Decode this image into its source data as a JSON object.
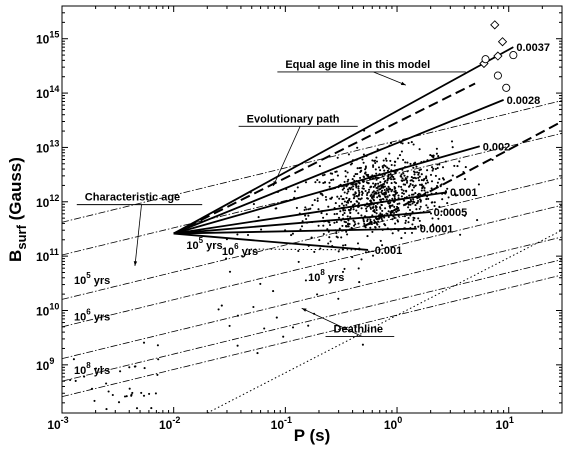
{
  "chart_data": {
    "type": "scatter",
    "x_scale": "log",
    "y_scale": "log",
    "xlim": [
      0.001,
      30
    ],
    "ylim": [
      130000000.0,
      4000000000000000.0
    ],
    "xlabel": "P (s)",
    "ylabel": "B_surf (Gauss)",
    "ylabel_main": "B",
    "ylabel_sub": "surf",
    "ylabel_unit": "(Gauss)",
    "x_ticks": [
      {
        "value": 0.001,
        "base": "10",
        "exp": "-3"
      },
      {
        "value": 0.01,
        "base": "10",
        "exp": "-2"
      },
      {
        "value": 0.1,
        "base": "10",
        "exp": "-1"
      },
      {
        "value": 1,
        "base": "10",
        "exp": "0"
      },
      {
        "value": 10,
        "base": "10",
        "exp": "1"
      }
    ],
    "y_ticks": [
      {
        "value": 1000000000.0,
        "base": "10",
        "exp": "9"
      },
      {
        "value": 10000000000.0,
        "base": "10",
        "exp": "10"
      },
      {
        "value": 100000000000.0,
        "base": "10",
        "exp": "11"
      },
      {
        "value": 1000000000000.0,
        "base": "10",
        "exp": "12"
      },
      {
        "value": 10000000000000.0,
        "base": "10",
        "exp": "13"
      },
      {
        "value": 100000000000000.0,
        "base": "10",
        "exp": "14"
      },
      {
        "value": 1000000000000000.0,
        "base": "10",
        "exp": "15"
      }
    ],
    "origin": {
      "x": 0.01,
      "y": 260000000000.0
    },
    "evolutionary_paths": [
      {
        "label": "0.0037",
        "end": [
          11,
          700000000000000.0
        ]
      },
      {
        "label": "0.0028",
        "end": [
          9,
          75000000000000.0
        ]
      },
      {
        "label": "0.002",
        "end": [
          5.5,
          10500000000000.0
        ]
      },
      {
        "label": "0.001",
        "end": [
          2.8,
          1500000000000.0
        ]
      },
      {
        "label": "0.0005",
        "end": [
          2.0,
          650000000000.0
        ]
      },
      {
        "label": "0.0001",
        "end": [
          1.5,
          320000000000.0
        ]
      },
      {
        "label": "-0.001",
        "end": [
          0.55,
          130000000000.0
        ]
      }
    ],
    "equal_age_line": {
      "points": [
        [
          0.01,
          260000000000.0
        ],
        [
          5,
          150000000000000.0
        ]
      ]
    },
    "characteristic_age_lines": [
      {
        "label": "10",
        "exp": "5",
        "unit": "yrs",
        "y_at_0.001": 16000000000.0
      },
      {
        "label": "10",
        "exp": "6",
        "unit": "yrs",
        "y_at_0.001": 5000000000.0
      },
      {
        "label": "10",
        "exp": "8",
        "unit": "yrs",
        "y_at_0.001": 500000000.0
      }
    ],
    "deathline": {
      "points": [
        [
          0.02,
          130000000.0
        ],
        [
          30,
          300000000000.0
        ]
      ]
    },
    "isochron_labels": [
      {
        "base": "10",
        "exp": "5",
        "unit": "yrs",
        "x": 0.013,
        "y": 135000000000.0
      },
      {
        "base": "10",
        "exp": "6",
        "unit": "yrs",
        "x": 0.027,
        "y": 105000000000.0
      },
      {
        "base": "10",
        "exp": "8",
        "unit": "yrs",
        "x": 0.16,
        "y": 35000000000.0
      }
    ],
    "annotations": [
      {
        "text": "Equal age line in this model",
        "text_x": 0.1,
        "text_y": 290000000000000.0,
        "arrow_to": [
          1.2,
          140000000000000.0
        ]
      },
      {
        "text": "Evolutionary path",
        "text_x": 0.045,
        "text_y": 29000000000000.0,
        "arrow_to": [
          0.078,
          1950000000000.0
        ]
      },
      {
        "text": "Characteristic age",
        "text_x": 0.0016,
        "text_y": 1050000000000.0,
        "arrow_to": [
          0.0045,
          66000000000.0
        ]
      },
      {
        "text": "Deathline",
        "text_x": 0.27,
        "text_y": 3950000000.0,
        "arrow_to": [
          0.14,
          11000000000.0
        ]
      }
    ],
    "magnetars_diamond": [
      [
        7.5,
        1800000000000000.0
      ],
      [
        6,
        350000000000000.0
      ],
      [
        8,
        480000000000000.0
      ],
      [
        8.8,
        880000000000000.0
      ]
    ],
    "magnetars_circle": [
      [
        6.2,
        420000000000000.0
      ],
      [
        8,
        210000000000000.0
      ],
      [
        11,
        500000000000000.0
      ],
      [
        9.5,
        125000000000000.0
      ]
    ],
    "pulsar_population": {
      "count": 820,
      "center_p": 0.7,
      "center_b": 1300000000000.0
    }
  }
}
